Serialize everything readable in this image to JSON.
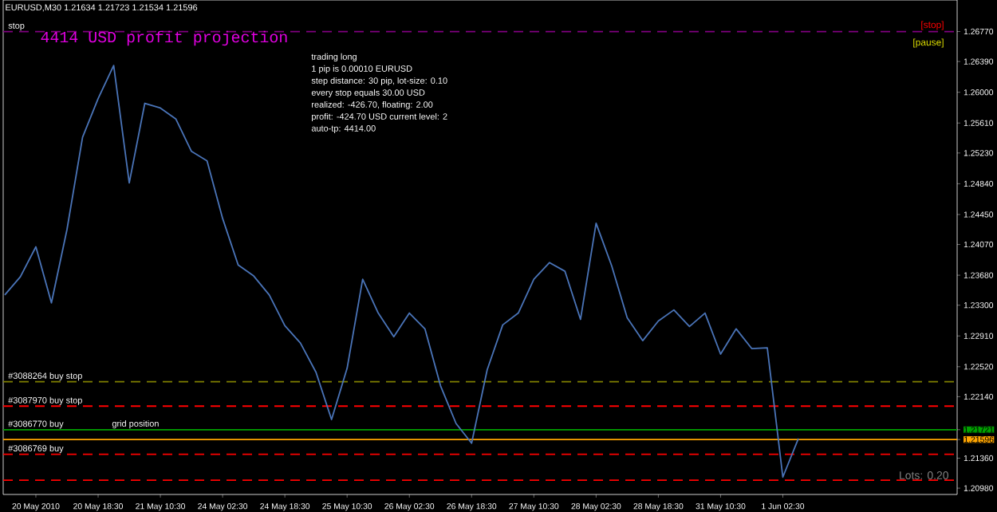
{
  "chart_data": {
    "type": "line",
    "title": "EURUSD,M30  1.21634 1.21723 1.21534 1.21596",
    "categories": [
      null,
      null,
      "20 May 2010",
      null,
      null,
      null,
      "20 May 18:30",
      null,
      null,
      null,
      "21 May 10:30",
      null,
      null,
      null,
      "24 May 02:30",
      null,
      null,
      null,
      "24 May 18:30",
      null,
      null,
      null,
      "25 May 10:30",
      null,
      null,
      null,
      "26 May 02:30",
      null,
      null,
      null,
      "26 May 18:30",
      null,
      null,
      null,
      "27 May 10:30",
      null,
      null,
      null,
      "28 May 02:30",
      null,
      null,
      null,
      "28 May 18:30",
      null,
      null,
      null,
      "31 May 10:30",
      null,
      null,
      null,
      "1 Jun 02:30",
      null,
      null,
      null,
      null,
      null,
      null,
      null,
      null,
      null,
      null,
      null
    ],
    "values": [
      1.2343,
      1.2366,
      1.2404,
      1.2333,
      1.2426,
      1.2543,
      1.2592,
      1.2634,
      1.2485,
      1.2586,
      1.258,
      1.2566,
      1.2525,
      1.2513,
      1.244,
      1.2381,
      1.2367,
      1.2343,
      1.2304,
      1.2282,
      1.2245,
      1.2185,
      1.225,
      1.2363,
      1.232,
      1.229,
      1.232,
      1.23,
      1.2228,
      1.218,
      1.2155,
      1.2248,
      1.2305,
      1.232,
      1.2363,
      1.2384,
      1.2373,
      1.2312,
      1.2434,
      1.238,
      1.2314,
      1.2285,
      1.231,
      1.2324,
      1.2303,
      1.232,
      1.2268,
      1.23,
      1.2275,
      1.2276,
      1.2112,
      1.2161,
      null,
      null,
      null,
      null,
      null,
      null,
      null,
      null,
      null,
      null
    ],
    "color": "#4a74b8",
    "line_style": "solid",
    "ylim": [
      1.209,
      1.2717
    ],
    "yticks": [
      {
        "value": 1.2677,
        "label": "1.26770"
      },
      {
        "value": 1.2639,
        "label": "1.26390"
      },
      {
        "value": 1.26,
        "label": "1.26000"
      },
      {
        "value": 1.2561,
        "label": "1.25610"
      },
      {
        "value": 1.2523,
        "label": "1.25230"
      },
      {
        "value": 1.2484,
        "label": "1.24840"
      },
      {
        "value": 1.2445,
        "label": "1.24450"
      },
      {
        "value": 1.2407,
        "label": "1.24070"
      },
      {
        "value": 1.2368,
        "label": "1.23680"
      },
      {
        "value": 1.233,
        "label": "1.23300"
      },
      {
        "value": 1.2291,
        "label": "1.22910"
      },
      {
        "value": 1.2252,
        "label": "1.22520"
      },
      {
        "value": 1.2214,
        "label": "1.22140"
      },
      1.21721,
      1.21596,
      {
        "value": 1.2136,
        "label": "1.21360"
      },
      {
        "value": 1.2098,
        "label": "1.20980"
      }
    ],
    "ref_lines": [
      {
        "axis": "y",
        "value": 1.2677,
        "label": "stop",
        "color": "#800080",
        "line_style": "dashed"
      },
      {
        "axis": "y",
        "value": 1.2233,
        "label": "#3088264 buy stop",
        "color": "#808000",
        "line_style": "dashed"
      },
      {
        "axis": "y",
        "value": 1.2202,
        "label": "#3087970 buy stop",
        "color": "#ff0000",
        "line_style": "dashed"
      },
      {
        "axis": "y",
        "value": 1.21721,
        "label": "#3086770 buy",
        "color": "#00a000",
        "line_style": "solid"
      },
      {
        "axis": "y",
        "value": 1.21596,
        "label": null,
        "color": "#ffa500",
        "line_style": "solid"
      },
      {
        "axis": "y",
        "value": 1.2141,
        "label": "#3086769 buy",
        "color": "#ff0000",
        "line_style": "dashed"
      },
      {
        "axis": "y",
        "value": 1.2108,
        "label": null,
        "color": "#ff0000",
        "line_style": "dashed"
      }
    ],
    "annotations": [
      "4414 USD profit projection",
      "trading long",
      "1 pip is 0.00010 EURUSD",
      "step distance: 30 pip, lot-size: 0.10",
      "every stop equals 30.00 USD",
      "realized: -426.70, floating: 2.00",
      "profit: -424.70 USD  current level: 2",
      "auto-tp: 4414.00",
      "[stop]",
      "[pause]",
      "grid position",
      "Lots: 0.20"
    ]
  }
}
